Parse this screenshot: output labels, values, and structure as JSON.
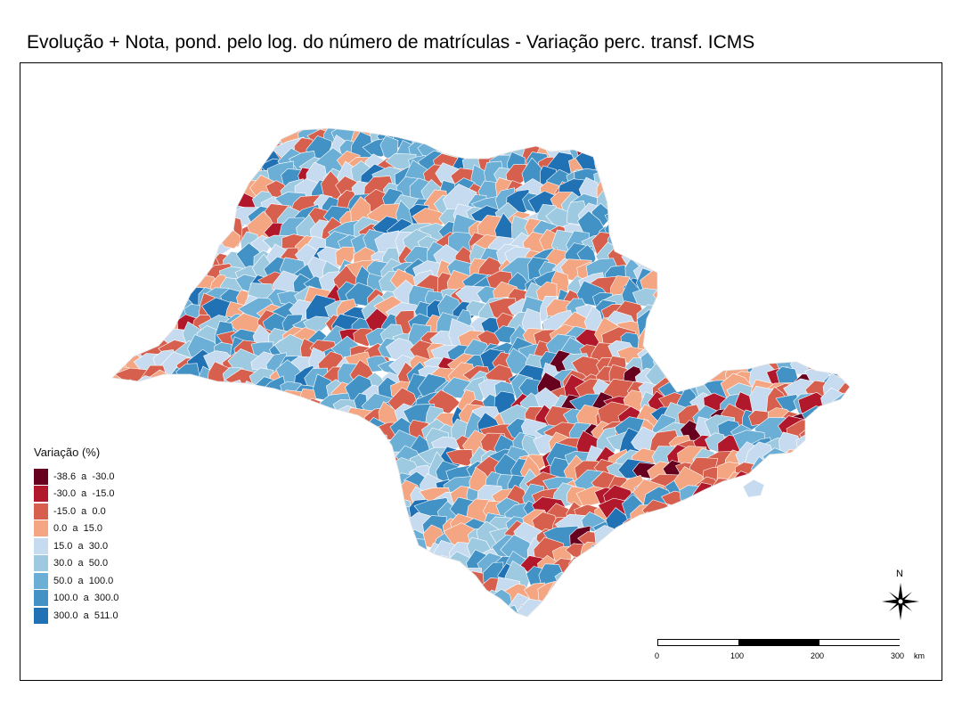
{
  "title": "Evolução + Nota, pond. pelo log. do número de matrículas - Variação perc. transf. ICMS",
  "legend": {
    "title": "Variação (%)",
    "items": [
      {
        "label": "-38.6  a  -30.0",
        "color": "#67001f"
      },
      {
        "label": "-30.0  a  -15.0",
        "color": "#b2182b"
      },
      {
        "label": "-15.0  a  0.0",
        "color": "#d6604d"
      },
      {
        "label": "0.0  a  15.0",
        "color": "#f4a582"
      },
      {
        "label": "15.0  a  30.0",
        "color": "#c6dbef"
      },
      {
        "label": "30.0  a  50.0",
        "color": "#9ecae1"
      },
      {
        "label": "50.0  a  100.0",
        "color": "#6baed6"
      },
      {
        "label": "100.0  a  300.0",
        "color": "#4292c6"
      },
      {
        "label": "300.0  a  511.0",
        "color": "#2171b5"
      }
    ]
  },
  "north_label": "N",
  "scale": {
    "ticks": [
      "0",
      "100",
      "200",
      "300"
    ],
    "unit": "km"
  },
  "map": {
    "region": "São Paulo municipalities",
    "fill_background": "#ffffff"
  }
}
